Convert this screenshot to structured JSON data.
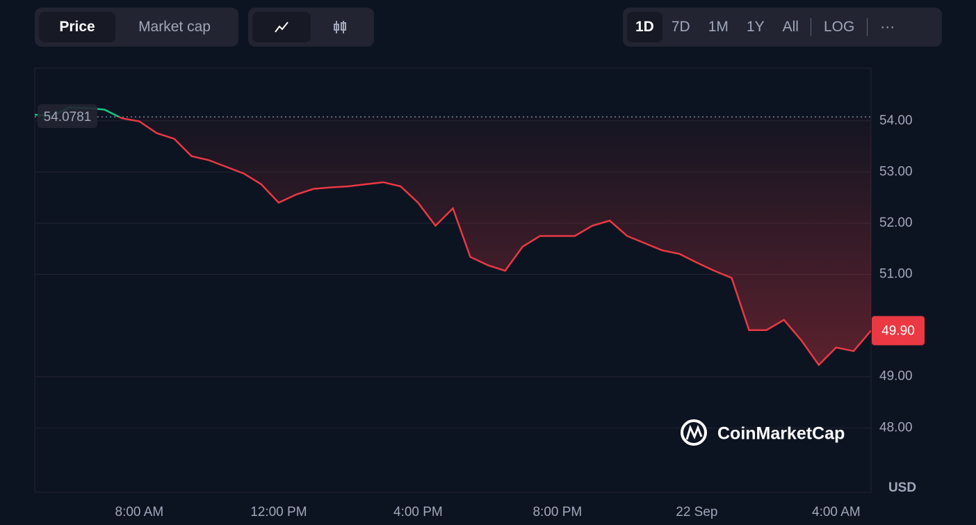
{
  "ui": {
    "metric_tabs": [
      "Price",
      "Market cap"
    ],
    "ranges": [
      "1D",
      "7D",
      "1M",
      "1Y",
      "All"
    ],
    "log": "LOG",
    "more": "···",
    "watermark": "CoinMarketCap"
  },
  "chart_data": {
    "type": "line",
    "unit": "USD",
    "categories": [
      null,
      null,
      null,
      null,
      null,
      null,
      "8:00 AM",
      null,
      null,
      null,
      null,
      null,
      null,
      null,
      "12:00 PM",
      null,
      null,
      null,
      null,
      null,
      null,
      null,
      "4:00 PM",
      null,
      null,
      null,
      null,
      null,
      null,
      null,
      "8:00 PM",
      null,
      null,
      null,
      null,
      null,
      null,
      null,
      "22 Sep",
      null,
      null,
      null,
      null,
      null,
      null,
      null,
      "4:00 AM",
      null,
      null
    ],
    "series": [
      {
        "color": "#ea3943",
        "up_color": "#16c784",
        "values": [
          54.12,
          54.1,
          54.26,
          54.25,
          54.22,
          54.05,
          53.99,
          53.76,
          53.65,
          53.31,
          53.23,
          53.1,
          52.97,
          52.76,
          52.4,
          52.56,
          52.67,
          52.7,
          52.72,
          52.76,
          52.8,
          52.72,
          52.4,
          51.95,
          52.29,
          51.34,
          51.18,
          51.07,
          51.54,
          51.75,
          51.75,
          51.75,
          51.95,
          52.05,
          51.75,
          51.61,
          51.47,
          51.4,
          51.23,
          51.07,
          50.93,
          49.91,
          49.91,
          50.11,
          49.71,
          49.23,
          49.57,
          49.5,
          49.9
        ],
        "value_labels": [
          null,
          null,
          null,
          null,
          null,
          null,
          null,
          null,
          null,
          null,
          null,
          null,
          null,
          null,
          null,
          null,
          null,
          null,
          null,
          null,
          null,
          null,
          null,
          null,
          null,
          null,
          null,
          null,
          null,
          null,
          null,
          null,
          null,
          null,
          null,
          null,
          null,
          null,
          null,
          null,
          null,
          null,
          null,
          null,
          null,
          null,
          null,
          null,
          "49.90"
        ]
      }
    ],
    "reference": 54.0781,
    "ylim": [
      46.74,
      55.03
    ],
    "yticks": [
      {
        "value": 48,
        "label": "48.00"
      },
      {
        "value": 49,
        "label": "49.00"
      },
      {
        "value": 51,
        "label": "51.00"
      },
      {
        "value": 52,
        "label": "52.00"
      },
      {
        "value": 53,
        "label": "53.00"
      },
      {
        "value": 54,
        "label": "54.00"
      }
    ],
    "grid": true
  }
}
